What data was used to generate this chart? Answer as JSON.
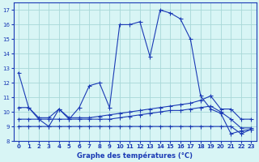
{
  "title": "Graphe des températures (°C)",
  "bg_color": "#d8f5f5",
  "grid_color": "#a8d8d8",
  "line_color": "#1a3ab5",
  "xlim": [
    -0.5,
    23.5
  ],
  "ylim": [
    8,
    17.5
  ],
  "xticks": [
    0,
    1,
    2,
    3,
    4,
    5,
    6,
    7,
    8,
    9,
    10,
    11,
    12,
    13,
    14,
    15,
    16,
    17,
    18,
    19,
    20,
    21,
    22,
    23
  ],
  "yticks": [
    8,
    9,
    10,
    11,
    12,
    13,
    14,
    15,
    16,
    17
  ],
  "series1_x": [
    0,
    1,
    2,
    3,
    4,
    5,
    6,
    7,
    8,
    9,
    10,
    11,
    12,
    13,
    14,
    15,
    16,
    17,
    18,
    19,
    20,
    21,
    22,
    23
  ],
  "series1_y": [
    12.7,
    10.3,
    9.5,
    9.0,
    10.2,
    9.5,
    10.3,
    11.8,
    12.0,
    10.3,
    16.0,
    16.0,
    16.2,
    13.8,
    17.0,
    16.8,
    16.4,
    15.0,
    11.1,
    10.2,
    9.9,
    8.5,
    8.7,
    8.8
  ],
  "series2_x": [
    0,
    1,
    2,
    3,
    4,
    5,
    6,
    7,
    8,
    9,
    10,
    11,
    12,
    13,
    14,
    15,
    16,
    17,
    18,
    19,
    20,
    21,
    22,
    23
  ],
  "series2_y": [
    10.3,
    10.3,
    9.6,
    9.6,
    10.2,
    9.6,
    9.6,
    9.6,
    9.7,
    9.8,
    9.9,
    10.0,
    10.1,
    10.2,
    10.3,
    10.4,
    10.5,
    10.6,
    10.8,
    11.1,
    10.2,
    10.2,
    9.5,
    9.5
  ],
  "series3_x": [
    0,
    1,
    2,
    3,
    4,
    5,
    6,
    7,
    8,
    9,
    10,
    11,
    12,
    13,
    14,
    15,
    16,
    17,
    18,
    19,
    20,
    21,
    22,
    23
  ],
  "series3_y": [
    9.5,
    9.5,
    9.5,
    9.5,
    9.5,
    9.5,
    9.5,
    9.5,
    9.5,
    9.5,
    9.6,
    9.7,
    9.8,
    9.9,
    10.0,
    10.1,
    10.1,
    10.2,
    10.3,
    10.4,
    10.0,
    9.5,
    8.9,
    8.9
  ],
  "series4_x": [
    0,
    1,
    2,
    3,
    4,
    5,
    6,
    7,
    8,
    9,
    10,
    11,
    12,
    13,
    14,
    15,
    16,
    17,
    18,
    19,
    20,
    21,
    22,
    23
  ],
  "series4_y": [
    9.0,
    9.0,
    9.0,
    9.0,
    9.0,
    9.0,
    9.0,
    9.0,
    9.0,
    9.0,
    9.0,
    9.0,
    9.0,
    9.0,
    9.0,
    9.0,
    9.0,
    9.0,
    9.0,
    9.0,
    9.0,
    9.0,
    8.5,
    8.8
  ]
}
